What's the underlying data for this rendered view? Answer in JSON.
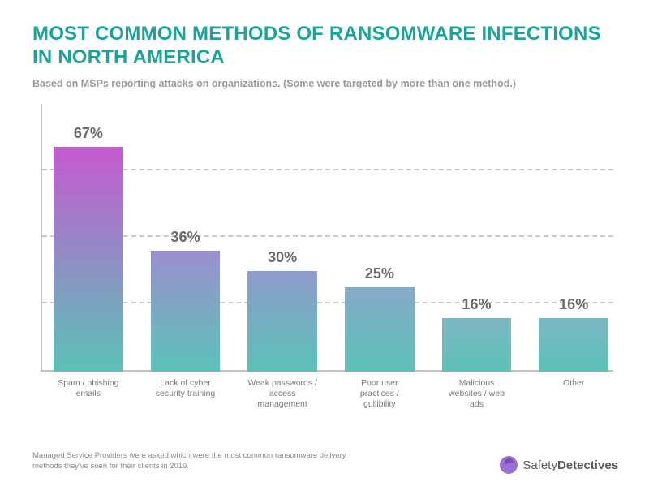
{
  "title": "MOST COMMON METHODS OF RANSOMWARE INFECTIONS IN NORTH AMERICA",
  "subtitle": "Based on MSPs reporting attacks on organizations. (Some were targeted by more than one method.)",
  "footnote": "Managed Service Providers were asked which were the most common ransomware delivery methods they've seen for their clients in 2019.",
  "brand": {
    "word1": "Safety",
    "word2": "Detectives",
    "logo_color": "#9b6fd4"
  },
  "chart": {
    "type": "bar",
    "y_max": 80,
    "gridlines": [
      20,
      40,
      60
    ],
    "grid_color": "#c9c9c9",
    "axis_color": "#c0c0c0",
    "background_color": "#ffffff",
    "value_label_color": "#6a6a6a",
    "value_label_fontsize": 18,
    "x_label_color": "#7a7a7a",
    "x_label_fontsize": 10.5,
    "bars": [
      {
        "label": "Spam / phishing emails",
        "value": 67,
        "display": "67%",
        "grad_top": "#c55ad1",
        "grad_bottom": "#5bc2b7"
      },
      {
        "label": "Lack of cyber security training",
        "value": 36,
        "display": "36%",
        "grad_top": "#9b8fcf",
        "grad_bottom": "#5bc2b7"
      },
      {
        "label": "Weak passwords / access management",
        "value": 30,
        "display": "30%",
        "grad_top": "#8f9bcd",
        "grad_bottom": "#5bc2b7"
      },
      {
        "label": "Poor user practices / gullibility",
        "value": 25,
        "display": "25%",
        "grad_top": "#87aac9",
        "grad_bottom": "#5bc2b7"
      },
      {
        "label": "Malicious websites / web ads",
        "value": 16,
        "display": "16%",
        "grad_top": "#7cb7c2",
        "grad_bottom": "#5bc2b7"
      },
      {
        "label": "Other",
        "value": 16,
        "display": "16%",
        "grad_top": "#7cb7c2",
        "grad_bottom": "#5bc2b7"
      }
    ]
  }
}
